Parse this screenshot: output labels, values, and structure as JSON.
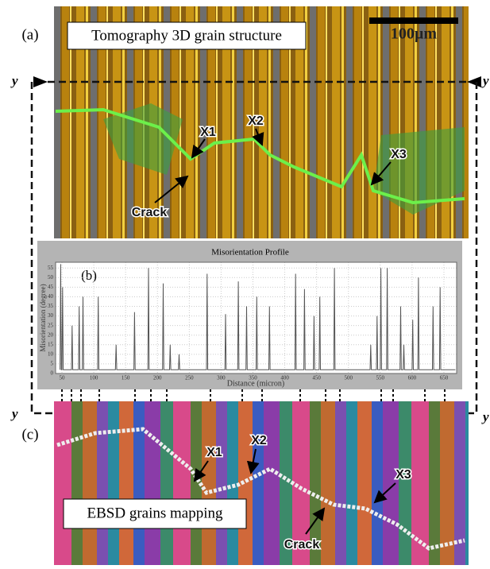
{
  "section_marker": "y",
  "panel_a": {
    "label": "(a)",
    "caption": "Tomography 3D grain structure",
    "scale_bar": "100µm",
    "markers": [
      "X1",
      "X2",
      "X3"
    ],
    "crack_label": "Crack"
  },
  "chart_data": {
    "type": "line",
    "panel_label": "(b)",
    "title": "Misorientation Profile",
    "x_label": "Distance (micron)",
    "y_label": "Misorientation (degree)",
    "color": "#555555",
    "x": [
      47,
      48,
      49,
      50,
      51,
      52,
      65,
      66,
      67,
      76,
      77,
      78,
      82,
      83,
      84,
      106,
      107,
      108,
      134,
      135,
      136,
      163,
      164,
      165,
      185,
      186,
      187,
      208,
      209,
      210,
      219,
      220,
      221,
      233,
      234,
      235,
      277,
      278,
      279,
      306,
      307,
      308,
      326,
      327,
      328,
      339,
      340,
      341,
      355,
      356,
      357,
      375,
      376,
      377,
      416,
      417,
      418,
      430,
      431,
      432,
      445,
      446,
      447,
      454,
      455,
      456,
      477,
      478,
      479,
      534,
      535,
      536,
      544,
      545,
      546,
      550,
      551,
      552,
      560,
      561,
      562,
      581,
      582,
      583,
      586,
      587,
      588,
      600,
      601,
      602,
      609,
      610,
      611,
      632,
      633,
      634,
      643,
      644,
      645,
      668
    ],
    "values": [
      2,
      57,
      2,
      2,
      45,
      2,
      2,
      25,
      2,
      2,
      35,
      2,
      2,
      40,
      2,
      2,
      40,
      2,
      2,
      15,
      2,
      2,
      32,
      2,
      2,
      55,
      2,
      2,
      47,
      2,
      2,
      15,
      2,
      2,
      10,
      2,
      2,
      52,
      2,
      2,
      31,
      2,
      2,
      48,
      2,
      2,
      35,
      2,
      2,
      40,
      2,
      2,
      35,
      2,
      2,
      52,
      2,
      2,
      44,
      2,
      2,
      30,
      2,
      2,
      40,
      2,
      2,
      55,
      2,
      2,
      15,
      2,
      2,
      30,
      2,
      2,
      55,
      2,
      2,
      55,
      2,
      2,
      35,
      2,
      2,
      15,
      2,
      2,
      28,
      2,
      2,
      50,
      2,
      2,
      35,
      2,
      2,
      45,
      2,
      2
    ],
    "xlim": [
      40,
      670
    ],
    "ylim": [
      0,
      58
    ],
    "xticks": [
      50,
      100,
      150,
      200,
      250,
      300,
      350,
      400,
      450,
      500,
      550,
      600,
      650
    ],
    "yticks": [
      0,
      5,
      10,
      15,
      20,
      25,
      30,
      35,
      40,
      45,
      50,
      55
    ],
    "grid": true
  },
  "panel_c": {
    "label": "(c)",
    "caption": "EBSD grains mapping",
    "markers": [
      "X1",
      "X2",
      "X3"
    ],
    "crack_label": "Crack"
  }
}
